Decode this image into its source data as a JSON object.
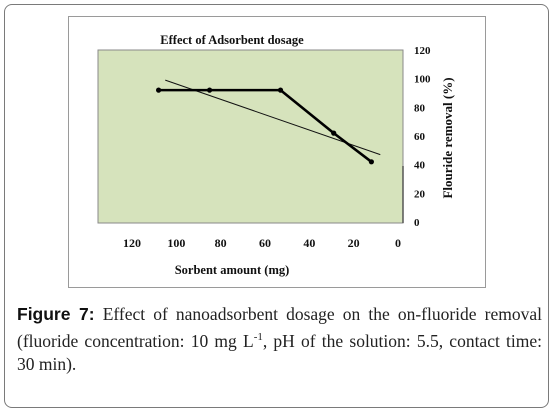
{
  "chart_data": {
    "type": "line",
    "title": "Effect of Adsorbent dosage",
    "xlabel": "Sorbent amount (mg)",
    "ylabel": "Flouride removal (%)",
    "x_reversed": true,
    "xlim": [
      120,
      0
    ],
    "ylim": [
      0,
      120
    ],
    "xticks": [
      "120",
      "100",
      "80",
      "60",
      "40",
      "20",
      "0"
    ],
    "yticks": [
      "0",
      "20",
      "40",
      "60",
      "80",
      "100",
      "120"
    ],
    "series": [
      {
        "x": [
          108,
          85,
          53,
          29,
          12
        ],
        "y": [
          92,
          92,
          92,
          62,
          42
        ],
        "color": "#000000"
      }
    ],
    "trendline": {
      "x": [
        105,
        8
      ],
      "y": [
        99,
        47
      ]
    },
    "plot_area_color": "#d6e3bc",
    "grid": false,
    "legend": "none"
  },
  "caption": {
    "label": "Figure 7:",
    "text_part1": " Effect of nanoadsorbent dosage on the on-fluoride removal (fluoride concentration: 10 mg L",
    "superscript": "-1",
    "text_part2": ", pH of the solution: 5.5, contact time: 30 min)."
  }
}
